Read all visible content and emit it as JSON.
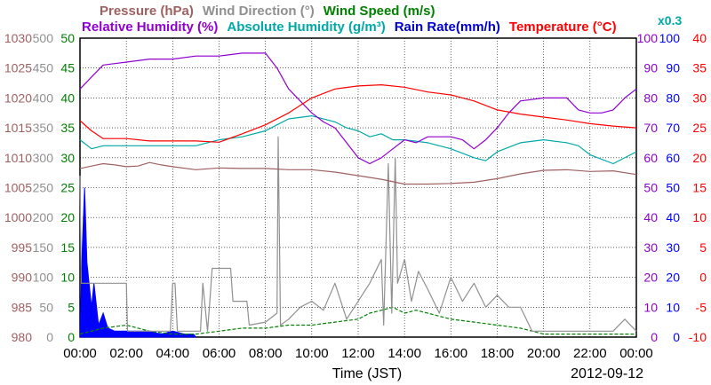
{
  "chart_data": {
    "type": "line",
    "legend": [
      {
        "label": "Pressure (hPa)",
        "color": "#a06060",
        "row": 1
      },
      {
        "label": "Wind Direction (°)",
        "color": "#909090",
        "row": 1
      },
      {
        "label": "Wind Speed (m/s)",
        "color": "#008000",
        "row": 1
      },
      {
        "label": "Relative Humidity (%)",
        "color": "#9000d0",
        "row": 2
      },
      {
        "label": "Absolute Humidity (g/m³)",
        "color": "#00a8a8",
        "row": 2
      },
      {
        "label": "Rain Rate(mm/h)",
        "color": "#0000cc",
        "row": 2
      },
      {
        "label": "Temperature (°C)",
        "color": "#ff0000",
        "row": 2
      }
    ],
    "abs_humidity_scale_note": "x0.3",
    "xlabel": "Time (JST)",
    "date": "2012-09-12",
    "x_ticks": [
      "00:00",
      "02:00",
      "04:00",
      "06:00",
      "08:00",
      "10:00",
      "12:00",
      "14:00",
      "16:00",
      "18:00",
      "20:00",
      "22:00",
      "00:00"
    ],
    "x_range_hours": [
      0,
      24
    ],
    "grid": true,
    "axes": {
      "pressure": {
        "ticks": [
          980,
          985,
          990,
          995,
          1000,
          1005,
          1010,
          1015,
          1020,
          1025,
          1030
        ],
        "range": [
          980,
          1030
        ],
        "color": "#a06060"
      },
      "wind_direction": {
        "ticks": [
          0,
          50,
          100,
          150,
          200,
          250,
          300,
          350,
          400,
          450,
          500
        ],
        "range": [
          0,
          500
        ],
        "color": "#909090"
      },
      "wind_speed": {
        "ticks": [
          0,
          5,
          10,
          15,
          20,
          25,
          30,
          35,
          40,
          45,
          50
        ],
        "range": [
          0,
          50
        ],
        "color": "#008000"
      },
      "relative_humidity": {
        "ticks": [
          0,
          10,
          20,
          30,
          40,
          50,
          60,
          70,
          80,
          90,
          100
        ],
        "range": [
          0,
          100
        ],
        "color": "#9000d0"
      },
      "abs_humidity": {
        "ticks": [
          0,
          10,
          20,
          30,
          40,
          50,
          60,
          70,
          80,
          90,
          100
        ],
        "range": [
          0,
          100
        ],
        "color": "#0000ff"
      },
      "temperature": {
        "ticks": [
          -10,
          -5,
          0,
          5,
          10,
          15,
          20,
          25,
          30,
          35,
          40
        ],
        "range": [
          -10,
          40
        ],
        "color": "#ff0000"
      }
    },
    "series": [
      {
        "key": "pressure",
        "axis": "pressure",
        "color": "#a06060",
        "points": [
          [
            0,
            1008.2
          ],
          [
            0.5,
            1008.6
          ],
          [
            1,
            1009
          ],
          [
            1.5,
            1008.8
          ],
          [
            2,
            1008.5
          ],
          [
            2.5,
            1008.6
          ],
          [
            3,
            1009.2
          ],
          [
            3.5,
            1008.8
          ],
          [
            4,
            1008.5
          ],
          [
            5,
            1008
          ],
          [
            6,
            1008.3
          ],
          [
            7,
            1008.2
          ],
          [
            8,
            1008.2
          ],
          [
            9,
            1008
          ],
          [
            10,
            1008
          ],
          [
            11,
            1007.6
          ],
          [
            12,
            1007
          ],
          [
            13,
            1006.4
          ],
          [
            14,
            1005.6
          ],
          [
            15,
            1005.6
          ],
          [
            16,
            1005.7
          ],
          [
            17,
            1005.9
          ],
          [
            18,
            1006.5
          ],
          [
            19,
            1007.3
          ],
          [
            20,
            1007.9
          ],
          [
            21,
            1008
          ],
          [
            22,
            1007.7
          ],
          [
            23,
            1007.8
          ],
          [
            24,
            1007.2
          ]
        ]
      },
      {
        "key": "wind_direction",
        "axis": "wind_direction",
        "color": "#909090",
        "points": [
          [
            0,
            270
          ],
          [
            0.05,
            90
          ],
          [
            2,
            90
          ],
          [
            2.05,
            10
          ],
          [
            2.3,
            10
          ],
          [
            2.35,
            10
          ],
          [
            3.9,
            10
          ],
          [
            4,
            90
          ],
          [
            4.1,
            90
          ],
          [
            4.2,
            10
          ],
          [
            5.2,
            10
          ],
          [
            5.3,
            90
          ],
          [
            5.5,
            10
          ],
          [
            5.6,
            60
          ],
          [
            5.7,
            115
          ],
          [
            6.5,
            115
          ],
          [
            6.6,
            60
          ],
          [
            7.2,
            60
          ],
          [
            7.3,
            20
          ],
          [
            8,
            25
          ],
          [
            8.5,
            40
          ],
          [
            8.55,
            335
          ],
          [
            8.65,
            20
          ],
          [
            9,
            30
          ],
          [
            9.5,
            50
          ],
          [
            10,
            60
          ],
          [
            10.5,
            45
          ],
          [
            11,
            90
          ],
          [
            11.5,
            30
          ],
          [
            12,
            60
          ],
          [
            12.5,
            90
          ],
          [
            13,
            130
          ],
          [
            13.1,
            20
          ],
          [
            13.3,
            290
          ],
          [
            13.45,
            40
          ],
          [
            13.6,
            300
          ],
          [
            13.7,
            90
          ],
          [
            14,
            130
          ],
          [
            14.3,
            60
          ],
          [
            14.6,
            110
          ],
          [
            15,
            80
          ],
          [
            15.5,
            40
          ],
          [
            16,
            100
          ],
          [
            16.5,
            60
          ],
          [
            17,
            90
          ],
          [
            17.5,
            50
          ],
          [
            18,
            70
          ],
          [
            18.5,
            50
          ],
          [
            19,
            50
          ],
          [
            19.5,
            10
          ],
          [
            20,
            10
          ],
          [
            21,
            10
          ],
          [
            22,
            10
          ],
          [
            23,
            10
          ],
          [
            23.5,
            30
          ],
          [
            24,
            10
          ]
        ]
      },
      {
        "key": "wind_speed",
        "axis": "wind_speed",
        "color": "#008000",
        "dashed": true,
        "points": [
          [
            0,
            0.5
          ],
          [
            1,
            1.5
          ],
          [
            2,
            2
          ],
          [
            2.5,
            1.5
          ],
          [
            3,
            1
          ],
          [
            4,
            0.5
          ],
          [
            5,
            0.5
          ],
          [
            6,
            1
          ],
          [
            7,
            1.5
          ],
          [
            8,
            1.5
          ],
          [
            9,
            2
          ],
          [
            10,
            2
          ],
          [
            11,
            2.5
          ],
          [
            12,
            3
          ],
          [
            12.5,
            4
          ],
          [
            13,
            4.5
          ],
          [
            13.5,
            5
          ],
          [
            14,
            4
          ],
          [
            14.5,
            4.5
          ],
          [
            15,
            4
          ],
          [
            15.5,
            3.5
          ],
          [
            16,
            3
          ],
          [
            17,
            2.5
          ],
          [
            18,
            2
          ],
          [
            19,
            1.5
          ],
          [
            20,
            0.5
          ],
          [
            21,
            0.5
          ],
          [
            22,
            0.5
          ],
          [
            23,
            0.5
          ],
          [
            24,
            0.5
          ]
        ]
      },
      {
        "key": "relative_humidity",
        "axis": "relative_humidity",
        "color": "#9000d0",
        "points": [
          [
            0,
            83
          ],
          [
            0.5,
            87
          ],
          [
            1,
            91
          ],
          [
            2,
            92
          ],
          [
            3,
            93
          ],
          [
            4,
            93
          ],
          [
            5,
            94
          ],
          [
            6,
            94
          ],
          [
            7,
            95
          ],
          [
            8,
            95
          ],
          [
            8.5,
            90
          ],
          [
            9,
            83
          ],
          [
            9.5,
            79
          ],
          [
            10,
            75
          ],
          [
            10.5,
            72
          ],
          [
            11,
            70
          ],
          [
            11.5,
            65
          ],
          [
            12,
            60
          ],
          [
            12.5,
            58
          ],
          [
            13,
            60
          ],
          [
            13.5,
            63
          ],
          [
            14,
            66
          ],
          [
            14.5,
            65
          ],
          [
            15,
            67
          ],
          [
            15.5,
            67
          ],
          [
            16,
            67
          ],
          [
            16.5,
            66
          ],
          [
            17,
            63
          ],
          [
            17.5,
            66
          ],
          [
            18,
            70
          ],
          [
            18.5,
            75
          ],
          [
            19,
            79
          ],
          [
            20,
            80
          ],
          [
            21,
            80
          ],
          [
            21.5,
            76
          ],
          [
            22,
            75
          ],
          [
            22.5,
            75
          ],
          [
            23,
            76
          ],
          [
            23.5,
            80
          ],
          [
            24,
            83
          ]
        ]
      },
      {
        "key": "abs_humidity",
        "axis": "abs_humidity",
        "color": "#00a8a8",
        "points": [
          [
            0,
            66
          ],
          [
            0.5,
            63
          ],
          [
            1,
            64
          ],
          [
            2,
            64
          ],
          [
            3,
            64
          ],
          [
            4,
            64
          ],
          [
            5,
            64
          ],
          [
            6,
            66
          ],
          [
            7,
            67
          ],
          [
            8,
            69
          ],
          [
            8.5,
            71
          ],
          [
            9,
            73
          ],
          [
            10,
            74
          ],
          [
            11,
            72
          ],
          [
            11.5,
            70
          ],
          [
            12,
            69
          ],
          [
            12.5,
            67
          ],
          [
            13,
            68
          ],
          [
            13.5,
            66
          ],
          [
            14,
            66
          ],
          [
            15,
            65
          ],
          [
            16,
            63
          ],
          [
            17,
            60
          ],
          [
            17.5,
            59
          ],
          [
            18,
            62
          ],
          [
            19,
            65
          ],
          [
            20,
            66
          ],
          [
            21,
            65
          ],
          [
            21.5,
            64
          ],
          [
            22,
            61
          ],
          [
            23,
            58
          ],
          [
            24,
            62
          ]
        ]
      },
      {
        "key": "rain_rate",
        "axis": "abs_humidity",
        "color": "#0000ff",
        "fill": true,
        "points": [
          [
            0,
            0
          ],
          [
            0.1,
            30
          ],
          [
            0.2,
            50
          ],
          [
            0.3,
            25
          ],
          [
            0.5,
            10
          ],
          [
            0.6,
            18
          ],
          [
            0.8,
            4
          ],
          [
            1,
            8
          ],
          [
            1.2,
            3
          ],
          [
            1.5,
            2
          ],
          [
            2,
            2
          ],
          [
            2.5,
            2
          ],
          [
            3,
            2
          ],
          [
            3.5,
            1
          ],
          [
            4,
            2
          ],
          [
            4.5,
            1
          ],
          [
            4.9,
            1
          ],
          [
            5,
            0
          ]
        ]
      },
      {
        "key": "temperature",
        "axis": "temperature",
        "color": "#ff0000",
        "points": [
          [
            0,
            26.2
          ],
          [
            0.5,
            24.5
          ],
          [
            1,
            23.2
          ],
          [
            2,
            23.2
          ],
          [
            3,
            22.8
          ],
          [
            4,
            22.8
          ],
          [
            5,
            22.8
          ],
          [
            6,
            22.6
          ],
          [
            7,
            24
          ],
          [
            8,
            25.5
          ],
          [
            9,
            27.5
          ],
          [
            10,
            30
          ],
          [
            11,
            31.5
          ],
          [
            12,
            32
          ],
          [
            13,
            32.2
          ],
          [
            14,
            31.8
          ],
          [
            15,
            31
          ],
          [
            16,
            30.5
          ],
          [
            17,
            29.5
          ],
          [
            18,
            28
          ],
          [
            19,
            27.3
          ],
          [
            20,
            26.8
          ],
          [
            21,
            26.3
          ],
          [
            22,
            25.7
          ],
          [
            23,
            25.3
          ],
          [
            24,
            25
          ]
        ]
      }
    ]
  }
}
